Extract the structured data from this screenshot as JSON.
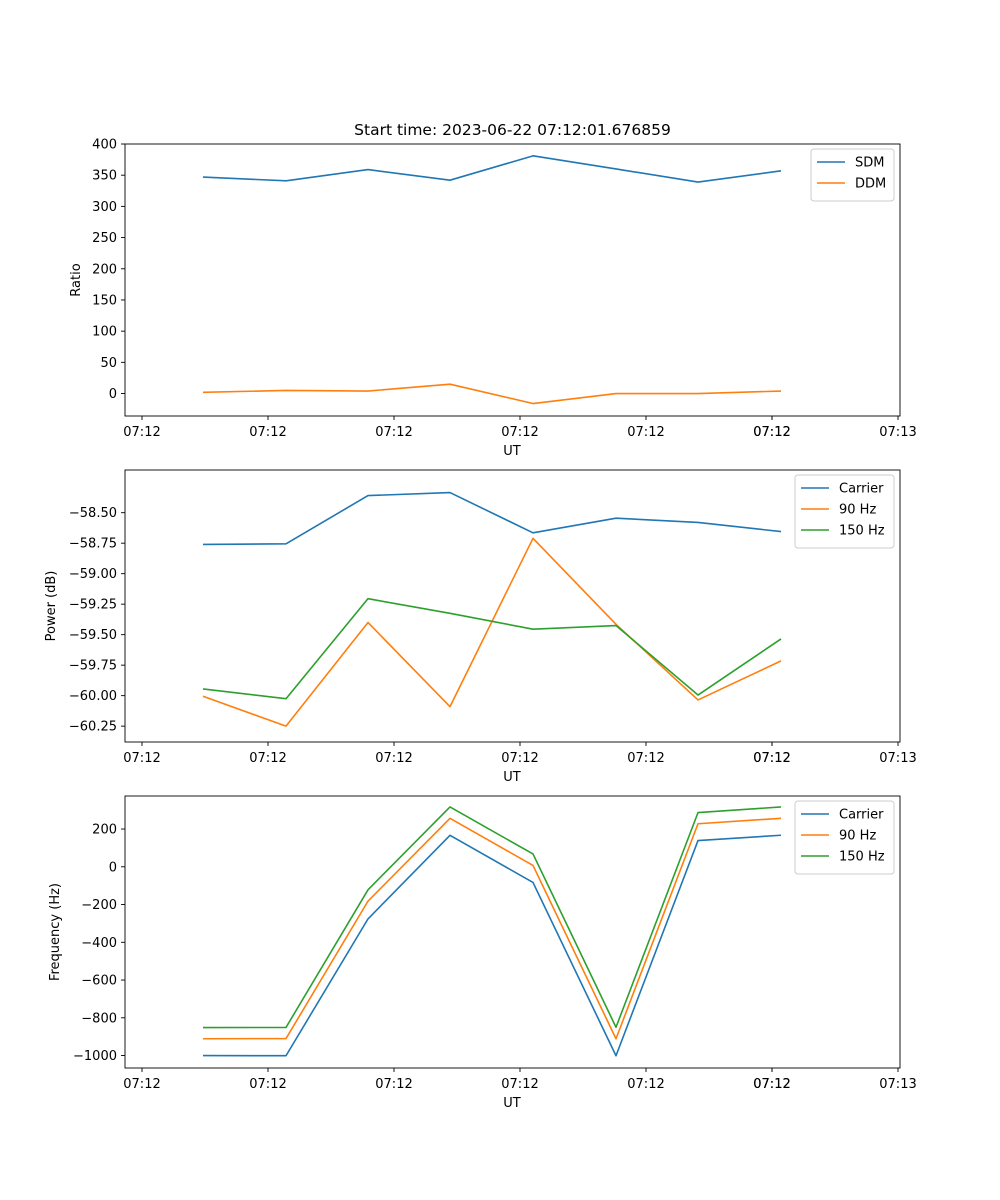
{
  "chart_data": [
    {
      "type": "line",
      "title": "Start time: 2023-06-22 07:12:01.676859",
      "xlabel": "UT",
      "ylabel": "Ratio",
      "x_tick_labels": [
        "07:12",
        "07:12",
        "07:12",
        "07:12",
        "07:12",
        "07:12",
        "07:12",
        "07:13"
      ],
      "ylim": [
        -36,
        400
      ],
      "yticks": [
        0,
        50,
        100,
        150,
        200,
        250,
        300,
        350,
        400
      ],
      "y_tick_labels": [
        "0",
        "50",
        "100",
        "150",
        "200",
        "250",
        "300",
        "350",
        "400"
      ],
      "grid": false,
      "legend": "top-right",
      "series": [
        {
          "name": "SDM",
          "color": "#1f77b4",
          "values": [
            347,
            341,
            359,
            342,
            381,
            360,
            339,
            357
          ]
        },
        {
          "name": "DDM",
          "color": "#ff7f0e",
          "values": [
            2,
            5,
            4,
            15,
            -16,
            0,
            0,
            4
          ]
        }
      ]
    },
    {
      "type": "line",
      "title": "",
      "xlabel": "UT",
      "ylabel": "Power (dB)",
      "x_tick_labels": [
        "07:12",
        "07:12",
        "07:12",
        "07:12",
        "07:12",
        "07:12",
        "07:12",
        "07:13"
      ],
      "ylim": [
        -60.38,
        -58.15
      ],
      "yticks": [
        -60.25,
        -60.0,
        -59.75,
        -59.5,
        -59.25,
        -59.0,
        -58.75,
        -58.5
      ],
      "y_tick_labels": [
        "−60.25",
        "−60.00",
        "−59.75",
        "−59.50",
        "−59.25",
        "−59.00",
        "−58.75",
        "−58.50"
      ],
      "grid": false,
      "legend": "top-right",
      "series": [
        {
          "name": "Carrier",
          "color": "#1f77b4",
          "values": [
            -58.76,
            -58.755,
            -58.36,
            -58.335,
            -58.665,
            -58.545,
            -58.58,
            -58.655
          ]
        },
        {
          "name": "90 Hz",
          "color": "#ff7f0e",
          "values": [
            -60.005,
            -60.25,
            -59.4,
            -60.09,
            -58.71,
            -59.415,
            -60.035,
            -59.715
          ]
        },
        {
          "name": "150 Hz",
          "color": "#2ca02c",
          "values": [
            -59.945,
            -60.025,
            -59.205,
            -59.325,
            -59.455,
            -59.425,
            -59.995,
            -59.535
          ]
        }
      ]
    },
    {
      "type": "line",
      "title": "",
      "xlabel": "UT",
      "ylabel": "Frequency (Hz)",
      "x_tick_labels": [
        "07:12",
        "07:12",
        "07:12",
        "07:12",
        "07:12",
        "07:12",
        "07:12",
        "07:13"
      ],
      "ylim": [
        -1066,
        375
      ],
      "yticks": [
        -1000,
        -800,
        -600,
        -400,
        -200,
        0,
        200
      ],
      "y_tick_labels": [
        "−1000",
        "−800",
        "−600",
        "−400",
        "−200",
        "0",
        "200"
      ],
      "grid": false,
      "legend": "top-right",
      "series": [
        {
          "name": "Carrier",
          "color": "#1f77b4",
          "values": [
            -1000,
            -1001,
            -276,
            167,
            -83,
            -1001,
            139,
            167
          ]
        },
        {
          "name": "90 Hz",
          "color": "#ff7f0e",
          "values": [
            -911,
            -910,
            -182,
            257,
            7,
            -911,
            228,
            257
          ]
        },
        {
          "name": "150 Hz",
          "color": "#2ca02c",
          "values": [
            -852,
            -851,
            -122,
            317,
            68,
            -850,
            287,
            317
          ]
        }
      ]
    }
  ]
}
